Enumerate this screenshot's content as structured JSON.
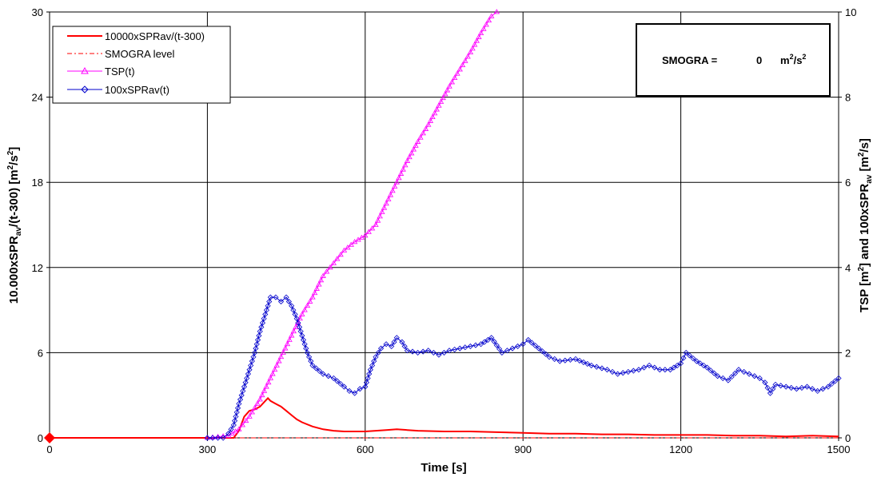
{
  "chart_data": {
    "type": "line",
    "xlabel": "Time [s]",
    "ylabel_left": {
      "pre": "10.000xSPR",
      "sub": "av",
      "post": "/(t-300) [m",
      "sup": "2",
      "post2": "/s",
      "sup2": "2",
      "end": "]"
    },
    "ylabel_right": {
      "pre": "TSP [m",
      "sup": "2",
      "mid": "] and 100xSPR",
      "sub": "av",
      "post": " [m",
      "sup2": "2",
      "end": "/s]"
    },
    "xlim": [
      0,
      1500
    ],
    "ylim_left": [
      0,
      30
    ],
    "ylim_right": [
      0,
      10
    ],
    "x_ticks": [
      "0",
      "300",
      "600",
      "900",
      "1200",
      "1500"
    ],
    "y_left_ticks": [
      "0",
      "6",
      "12",
      "18",
      "24",
      "30"
    ],
    "y_right_ticks": [
      "0",
      "2",
      "4",
      "6",
      "8",
      "10"
    ],
    "grid": true,
    "legend_position": "top-left",
    "annotation": {
      "label": "SMOGRA =",
      "value": "0",
      "unit": "m",
      "unit_sup": "2",
      "unit_mid": "/s",
      "unit_sup2": "2"
    },
    "series": [
      {
        "name": "10000xSPRav/(t-300)",
        "axis": "left",
        "color": "#ff0000",
        "style": "solid",
        "marker": "none",
        "x": [
          0,
          350,
          360,
          370,
          380,
          390,
          400,
          410,
          415,
          420,
          430,
          440,
          450,
          460,
          470,
          480,
          500,
          520,
          540,
          560,
          580,
          600,
          620,
          640,
          660,
          680,
          700,
          750,
          800,
          850,
          900,
          950,
          1000,
          1050,
          1100,
          1150,
          1200,
          1250,
          1300,
          1350,
          1400,
          1450,
          1500
        ],
        "y": [
          0,
          0,
          0.5,
          1.5,
          1.9,
          2.0,
          2.2,
          2.6,
          2.8,
          2.6,
          2.4,
          2.2,
          1.9,
          1.6,
          1.3,
          1.1,
          0.8,
          0.6,
          0.5,
          0.45,
          0.45,
          0.45,
          0.5,
          0.55,
          0.6,
          0.55,
          0.5,
          0.45,
          0.45,
          0.4,
          0.35,
          0.3,
          0.3,
          0.25,
          0.25,
          0.2,
          0.2,
          0.2,
          0.15,
          0.15,
          0.1,
          0.15,
          0.1
        ]
      },
      {
        "name": "SMOGRA level",
        "axis": "left",
        "color": "#ff0000",
        "style": "dashdot",
        "marker": "none",
        "x": [
          0,
          1500
        ],
        "y": [
          0,
          0
        ]
      },
      {
        "name": "TSP(t)",
        "axis": "right",
        "color": "#ff00ff",
        "style": "solid",
        "marker": "triangle",
        "x": [
          300,
          340,
          360,
          380,
          400,
          420,
          440,
          460,
          480,
          500,
          520,
          540,
          560,
          580,
          600,
          620,
          640,
          660,
          680,
          700,
          720,
          740,
          760,
          780,
          800,
          820,
          840,
          850
        ],
        "y": [
          0,
          0.05,
          0.2,
          0.5,
          0.9,
          1.4,
          1.9,
          2.4,
          2.9,
          3.3,
          3.8,
          4.1,
          4.4,
          4.6,
          4.75,
          5.0,
          5.5,
          6.0,
          6.5,
          6.95,
          7.35,
          7.8,
          8.25,
          8.65,
          9.05,
          9.5,
          9.9,
          10.0
        ]
      },
      {
        "name": "100xSPRav(t)",
        "axis": "right",
        "color": "#0000cc",
        "style": "solid",
        "marker": "diamond",
        "x": [
          300,
          330,
          340,
          350,
          360,
          370,
          380,
          390,
          400,
          410,
          420,
          430,
          440,
          450,
          460,
          470,
          480,
          490,
          500,
          520,
          540,
          560,
          570,
          580,
          590,
          600,
          610,
          620,
          630,
          640,
          650,
          660,
          670,
          680,
          700,
          720,
          740,
          760,
          780,
          800,
          820,
          840,
          860,
          880,
          900,
          910,
          930,
          950,
          970,
          1000,
          1030,
          1060,
          1080,
          1100,
          1120,
          1140,
          1160,
          1180,
          1200,
          1210,
          1230,
          1250,
          1270,
          1290,
          1310,
          1330,
          1350,
          1360,
          1370,
          1380,
          1400,
          1420,
          1440,
          1460,
          1480,
          1500
        ],
        "y": [
          0,
          0,
          0.1,
          0.3,
          0.8,
          1.2,
          1.6,
          2.0,
          2.5,
          2.9,
          3.3,
          3.3,
          3.2,
          3.3,
          3.1,
          2.8,
          2.4,
          2.0,
          1.7,
          1.5,
          1.4,
          1.2,
          1.1,
          1.05,
          1.15,
          1.2,
          1.6,
          1.9,
          2.1,
          2.2,
          2.15,
          2.35,
          2.25,
          2.05,
          2.0,
          2.05,
          1.95,
          2.05,
          2.1,
          2.15,
          2.2,
          2.35,
          2.0,
          2.1,
          2.2,
          2.3,
          2.1,
          1.9,
          1.8,
          1.85,
          1.7,
          1.6,
          1.5,
          1.55,
          1.6,
          1.7,
          1.6,
          1.6,
          1.75,
          2.0,
          1.8,
          1.65,
          1.45,
          1.35,
          1.6,
          1.5,
          1.4,
          1.3,
          1.05,
          1.25,
          1.2,
          1.15,
          1.2,
          1.1,
          1.2,
          1.4
        ]
      }
    ]
  }
}
